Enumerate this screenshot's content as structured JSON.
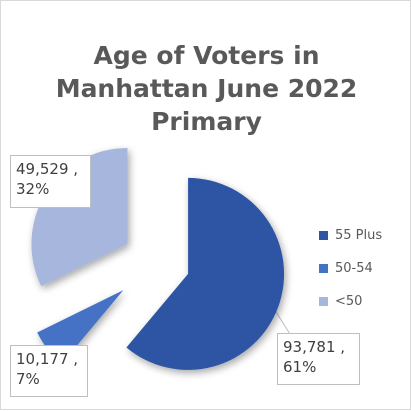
{
  "chart_data": {
    "type": "pie",
    "exploded": true,
    "title_lines": [
      "Age of Voters in",
      "Manhattan June 2022",
      "Primary"
    ],
    "categories": [
      "55 Plus",
      "50-54",
      "<50"
    ],
    "values": [
      93781,
      10177,
      49529
    ],
    "percent_labels": [
      "61%",
      "7%",
      "32%"
    ],
    "value_labels": [
      "93,781 ,",
      "10,177 ,",
      "49,529 ,"
    ],
    "colors": [
      "#2f55a4",
      "#4472c4",
      "#a7b6dc"
    ],
    "legend_position": "right"
  }
}
